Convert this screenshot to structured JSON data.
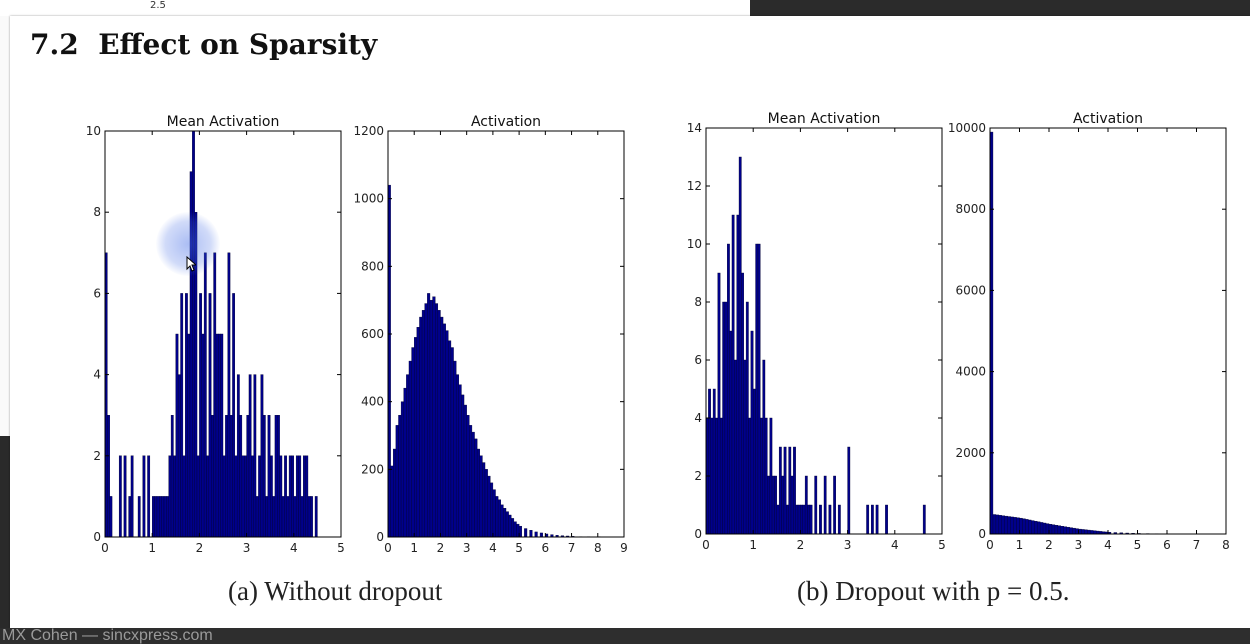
{
  "section": {
    "number": "7.2",
    "title": "Effect on Sparsity"
  },
  "background_window": {
    "axis_label": "2.5"
  },
  "captions": {
    "a": "(a) Without dropout",
    "b": "(b) Dropout with p = 0.5."
  },
  "footer": {
    "text": "MX Cohen — sincxpress.com"
  },
  "colors": {
    "bar_fill": "#00008b",
    "bar_edge": "#000033",
    "axis": "#000000"
  },
  "chart_data": [
    {
      "type": "bar",
      "title": "Mean Activation",
      "panel": "a",
      "xlim": [
        0,
        5
      ],
      "ylim": [
        0,
        10
      ],
      "xticks": [
        0,
        1,
        2,
        3,
        4,
        5
      ],
      "yticks": [
        0,
        2,
        4,
        6,
        8,
        10
      ],
      "bin_width": 0.05,
      "x": [
        0.0,
        0.05,
        0.1,
        0.3,
        0.4,
        0.5,
        0.55,
        0.7,
        0.8,
        0.9,
        1.0,
        1.05,
        1.1,
        1.15,
        1.2,
        1.25,
        1.3,
        1.35,
        1.4,
        1.45,
        1.5,
        1.55,
        1.6,
        1.65,
        1.7,
        1.75,
        1.8,
        1.85,
        1.9,
        1.95,
        2.0,
        2.05,
        2.1,
        2.15,
        2.2,
        2.25,
        2.3,
        2.35,
        2.4,
        2.45,
        2.5,
        2.55,
        2.6,
        2.65,
        2.7,
        2.75,
        2.8,
        2.85,
        2.9,
        2.95,
        3.0,
        3.05,
        3.1,
        3.15,
        3.2,
        3.25,
        3.3,
        3.35,
        3.4,
        3.45,
        3.5,
        3.55,
        3.6,
        3.65,
        3.7,
        3.75,
        3.8,
        3.85,
        3.9,
        3.95,
        4.0,
        4.05,
        4.1,
        4.15,
        4.2,
        4.25,
        4.3,
        4.35,
        4.45
      ],
      "values": [
        7,
        3,
        1,
        2,
        2,
        1,
        2,
        1,
        2,
        2,
        1,
        1,
        1,
        1,
        1,
        1,
        1,
        2,
        3,
        2,
        5,
        4,
        6,
        2,
        6,
        5,
        9,
        10,
        8,
        2,
        6,
        5,
        7,
        2,
        6,
        3,
        7,
        5,
        5,
        5,
        2,
        3,
        7,
        3,
        6,
        2,
        4,
        3,
        2,
        2,
        3,
        4,
        2,
        4,
        1,
        2,
        4,
        3,
        1,
        3,
        2,
        1,
        3,
        3,
        2,
        1,
        2,
        1,
        2,
        2,
        1,
        2,
        2,
        1,
        2,
        2,
        1,
        1,
        1
      ]
    },
    {
      "type": "bar",
      "title": "Activation",
      "panel": "a",
      "xlim": [
        0,
        9
      ],
      "ylim": [
        0,
        1200
      ],
      "xticks": [
        0,
        1,
        2,
        3,
        4,
        5,
        6,
        7,
        8,
        9
      ],
      "yticks": [
        0,
        200,
        400,
        600,
        800,
        1000,
        1200
      ],
      "bin_width": 0.1,
      "x": [
        0.0,
        0.1,
        0.2,
        0.3,
        0.4,
        0.5,
        0.6,
        0.7,
        0.8,
        0.9,
        1.0,
        1.1,
        1.2,
        1.3,
        1.4,
        1.5,
        1.6,
        1.7,
        1.8,
        1.9,
        2.0,
        2.1,
        2.2,
        2.3,
        2.4,
        2.5,
        2.6,
        2.7,
        2.8,
        2.9,
        3.0,
        3.1,
        3.2,
        3.3,
        3.4,
        3.5,
        3.6,
        3.7,
        3.8,
        3.9,
        4.0,
        4.1,
        4.2,
        4.3,
        4.4,
        4.5,
        4.6,
        4.7,
        4.8,
        4.9,
        5.0,
        5.2,
        5.4,
        5.6,
        5.8,
        6.0,
        6.2,
        6.4,
        6.6,
        6.8,
        7.0,
        7.3,
        7.6,
        8.0,
        8.4
      ],
      "values": [
        1040,
        210,
        260,
        330,
        360,
        400,
        440,
        480,
        520,
        560,
        590,
        620,
        650,
        670,
        690,
        720,
        700,
        710,
        690,
        670,
        650,
        630,
        610,
        580,
        560,
        520,
        480,
        450,
        420,
        390,
        360,
        330,
        310,
        290,
        260,
        240,
        220,
        200,
        180,
        160,
        140,
        120,
        110,
        95,
        85,
        75,
        65,
        55,
        45,
        38,
        32,
        25,
        20,
        15,
        12,
        9,
        7,
        5,
        4,
        3,
        2,
        1,
        1,
        1,
        0
      ]
    },
    {
      "type": "bar",
      "title": "Mean Activation",
      "panel": "b",
      "xlim": [
        0,
        5
      ],
      "ylim": [
        0,
        14
      ],
      "xticks": [
        0,
        1,
        2,
        3,
        4,
        5
      ],
      "yticks": [
        0,
        2,
        4,
        6,
        8,
        10,
        12,
        14
      ],
      "bin_width": 0.05,
      "x": [
        0.0,
        0.05,
        0.1,
        0.15,
        0.2,
        0.25,
        0.3,
        0.35,
        0.4,
        0.45,
        0.5,
        0.55,
        0.6,
        0.65,
        0.7,
        0.75,
        0.8,
        0.85,
        0.9,
        0.95,
        1.0,
        1.05,
        1.1,
        1.15,
        1.2,
        1.25,
        1.3,
        1.35,
        1.4,
        1.45,
        1.5,
        1.55,
        1.6,
        1.65,
        1.7,
        1.75,
        1.8,
        1.85,
        1.9,
        1.95,
        2.0,
        2.05,
        2.1,
        2.15,
        2.2,
        2.3,
        2.4,
        2.5,
        2.6,
        2.7,
        2.8,
        3.0,
        3.4,
        3.5,
        3.6,
        3.8,
        4.6
      ],
      "values": [
        4,
        5,
        4,
        5,
        4,
        9,
        4,
        8,
        8,
        10,
        7,
        11,
        6,
        11,
        13,
        9,
        6,
        8,
        4,
        7,
        5,
        10,
        10,
        4,
        6,
        4,
        2,
        4,
        2,
        2,
        1,
        3,
        2,
        3,
        1,
        3,
        2,
        3,
        1,
        1,
        1,
        1,
        2,
        1,
        1,
        2,
        1,
        2,
        1,
        2,
        1,
        3,
        1,
        1,
        1,
        1,
        1
      ]
    },
    {
      "type": "bar",
      "title": "Activation",
      "panel": "b",
      "xlim": [
        0,
        8
      ],
      "ylim": [
        0,
        10000
      ],
      "xticks": [
        0,
        1,
        2,
        3,
        4,
        5,
        6,
        7,
        8
      ],
      "yticks": [
        0,
        2000,
        4000,
        6000,
        8000,
        10000
      ],
      "bin_width": 0.1,
      "x": [
        0.0,
        0.1,
        0.2,
        0.3,
        0.4,
        0.5,
        0.6,
        0.7,
        0.8,
        0.9,
        1.0,
        1.1,
        1.2,
        1.3,
        1.4,
        1.5,
        1.6,
        1.7,
        1.8,
        1.9,
        2.0,
        2.1,
        2.2,
        2.3,
        2.4,
        2.5,
        2.6,
        2.7,
        2.8,
        2.9,
        3.0,
        3.1,
        3.2,
        3.3,
        3.4,
        3.5,
        3.6,
        3.7,
        3.8,
        3.9,
        4.0,
        4.2,
        4.4,
        4.6,
        4.8,
        5.0,
        5.3,
        5.6,
        6.0,
        6.5,
        7.0
      ],
      "values": [
        9900,
        480,
        470,
        460,
        450,
        440,
        430,
        420,
        410,
        400,
        390,
        375,
        360,
        345,
        330,
        315,
        300,
        285,
        270,
        255,
        240,
        228,
        216,
        204,
        192,
        180,
        168,
        156,
        144,
        132,
        120,
        112,
        104,
        96,
        88,
        80,
        72,
        64,
        56,
        50,
        44,
        36,
        30,
        24,
        18,
        14,
        10,
        8,
        5,
        3,
        1
      ]
    }
  ]
}
